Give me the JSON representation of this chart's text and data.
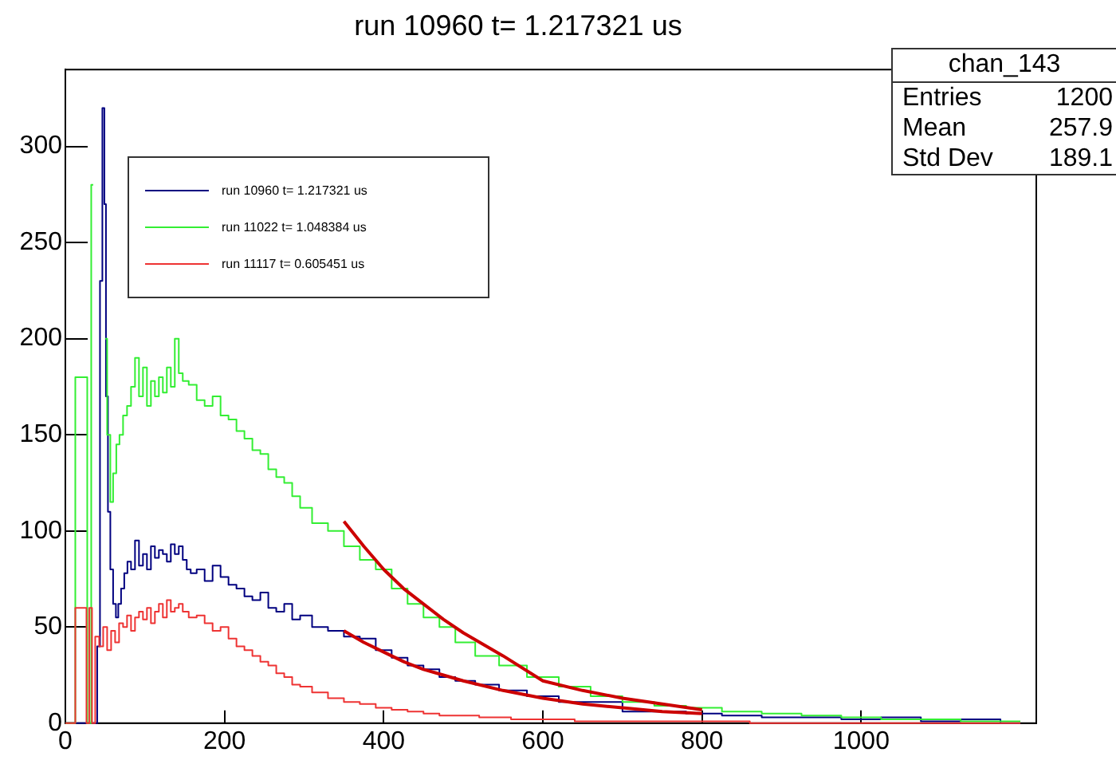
{
  "chart_data": {
    "type": "step",
    "title": "run 10960 t= 1.217321 us",
    "xlim": [
      0,
      1220
    ],
    "xticks": [
      0,
      200,
      400,
      600,
      800,
      1000
    ],
    "ylim": [
      0,
      340
    ],
    "yticks": [
      0,
      50,
      100,
      150,
      200,
      250,
      300
    ],
    "grid": false,
    "legend": "top left",
    "marker": "none",
    "line_style": "solid",
    "series": [
      {
        "name": "run 10960 t= 1.217321 us",
        "color": "#000080",
        "x": [
          0,
          38,
          42,
          45,
          48,
          50,
          52,
          55,
          58,
          62,
          65,
          68,
          72,
          76,
          80,
          85,
          90,
          95,
          100,
          105,
          110,
          115,
          120,
          125,
          130,
          135,
          140,
          145,
          150,
          155,
          160,
          170,
          180,
          190,
          200,
          210,
          220,
          230,
          240,
          250,
          260,
          270,
          280,
          290,
          300,
          320,
          340,
          360,
          380,
          400,
          420,
          440,
          460,
          480,
          500,
          530,
          560,
          600,
          640,
          680,
          720,
          760,
          800,
          850,
          900,
          950,
          1000,
          1050,
          1100,
          1150,
          1200
        ],
        "values": [
          0,
          0,
          40,
          230,
          320,
          270,
          170,
          110,
          80,
          62,
          55,
          62,
          70,
          78,
          84,
          80,
          95,
          82,
          88,
          80,
          92,
          86,
          90,
          88,
          84,
          93,
          88,
          92,
          85,
          80,
          78,
          80,
          74,
          82,
          76,
          72,
          70,
          66,
          64,
          68,
          60,
          58,
          62,
          54,
          56,
          50,
          48,
          45,
          44,
          38,
          34,
          30,
          28,
          24,
          22,
          20,
          17,
          14,
          11,
          11,
          6,
          6,
          5,
          4,
          3,
          3,
          2,
          3,
          1,
          2,
          0
        ]
      },
      {
        "name": "run 11022 t= 1.048384 us",
        "color": "#33ee33",
        "x": [
          0,
          25,
          30,
          35,
          38,
          42,
          45,
          50,
          55,
          58,
          62,
          66,
          70,
          75,
          80,
          85,
          90,
          95,
          100,
          105,
          110,
          115,
          120,
          125,
          130,
          135,
          140,
          145,
          150,
          160,
          170,
          180,
          190,
          200,
          210,
          220,
          230,
          240,
          250,
          260,
          270,
          280,
          290,
          300,
          320,
          340,
          360,
          380,
          400,
          420,
          440,
          460,
          480,
          500,
          530,
          560,
          600,
          640,
          680,
          720,
          760,
          800,
          850,
          900,
          950,
          1000,
          1050,
          1100,
          1150,
          1200
        ],
        "values": [
          0,
          180,
          0,
          280,
          null,
          null,
          null,
          200,
          150,
          115,
          130,
          145,
          150,
          160,
          165,
          175,
          190,
          170,
          185,
          165,
          178,
          170,
          180,
          172,
          185,
          175,
          200,
          182,
          178,
          176,
          168,
          165,
          170,
          160,
          158,
          152,
          148,
          142,
          140,
          132,
          128,
          125,
          118,
          112,
          104,
          100,
          92,
          85,
          80,
          70,
          62,
          55,
          50,
          42,
          35,
          30,
          24,
          19,
          14,
          11,
          9,
          8,
          6,
          5,
          4,
          3,
          2,
          2,
          1,
          1
        ]
      },
      {
        "name": "run 11117 t= 0.605451 us",
        "color": "#ee3333",
        "x": [
          0,
          25,
          28,
          32,
          35,
          40,
          45,
          50,
          55,
          60,
          65,
          70,
          75,
          80,
          85,
          90,
          95,
          100,
          105,
          110,
          115,
          120,
          125,
          130,
          135,
          140,
          145,
          150,
          160,
          170,
          180,
          190,
          200,
          210,
          220,
          230,
          240,
          250,
          260,
          270,
          280,
          290,
          300,
          320,
          340,
          360,
          380,
          400,
          420,
          440,
          460,
          480,
          500,
          540,
          580,
          620,
          660,
          700,
          760,
          820,
          900,
          1000,
          1100,
          1200
        ],
        "values": [
          0,
          60,
          0,
          60,
          0,
          45,
          40,
          50,
          38,
          48,
          42,
          52,
          50,
          56,
          48,
          55,
          58,
          54,
          60,
          52,
          58,
          62,
          55,
          64,
          58,
          60,
          62,
          58,
          55,
          56,
          52,
          48,
          50,
          44,
          40,
          38,
          35,
          32,
          30,
          26,
          24,
          20,
          19,
          16,
          13,
          11,
          10,
          8,
          7,
          6,
          5,
          4,
          4,
          3,
          2,
          2,
          1,
          1,
          1,
          1,
          0,
          0,
          0,
          0
        ]
      },
      {
        "type": "line",
        "color": "#cc0000",
        "x": [
          350,
          375,
          400,
          425,
          450,
          475,
          500,
          550,
          600,
          650,
          700,
          750,
          800
        ],
        "values": [
          105,
          92,
          80,
          70,
          62,
          54,
          47,
          35,
          22,
          17,
          13,
          10,
          7
        ]
      },
      {
        "type": "line",
        "color": "#cc0000",
        "x": [
          350,
          375,
          400,
          425,
          450,
          475,
          500,
          550,
          600,
          650,
          700,
          750,
          800
        ],
        "values": [
          48,
          42,
          37,
          32,
          28,
          25,
          22,
          17,
          13,
          10,
          8,
          6,
          5
        ]
      }
    ],
    "annotations": [
      "chan_143",
      "Entries",
      "1200",
      "Mean",
      "257.9",
      "Std Dev",
      "189.1"
    ]
  }
}
